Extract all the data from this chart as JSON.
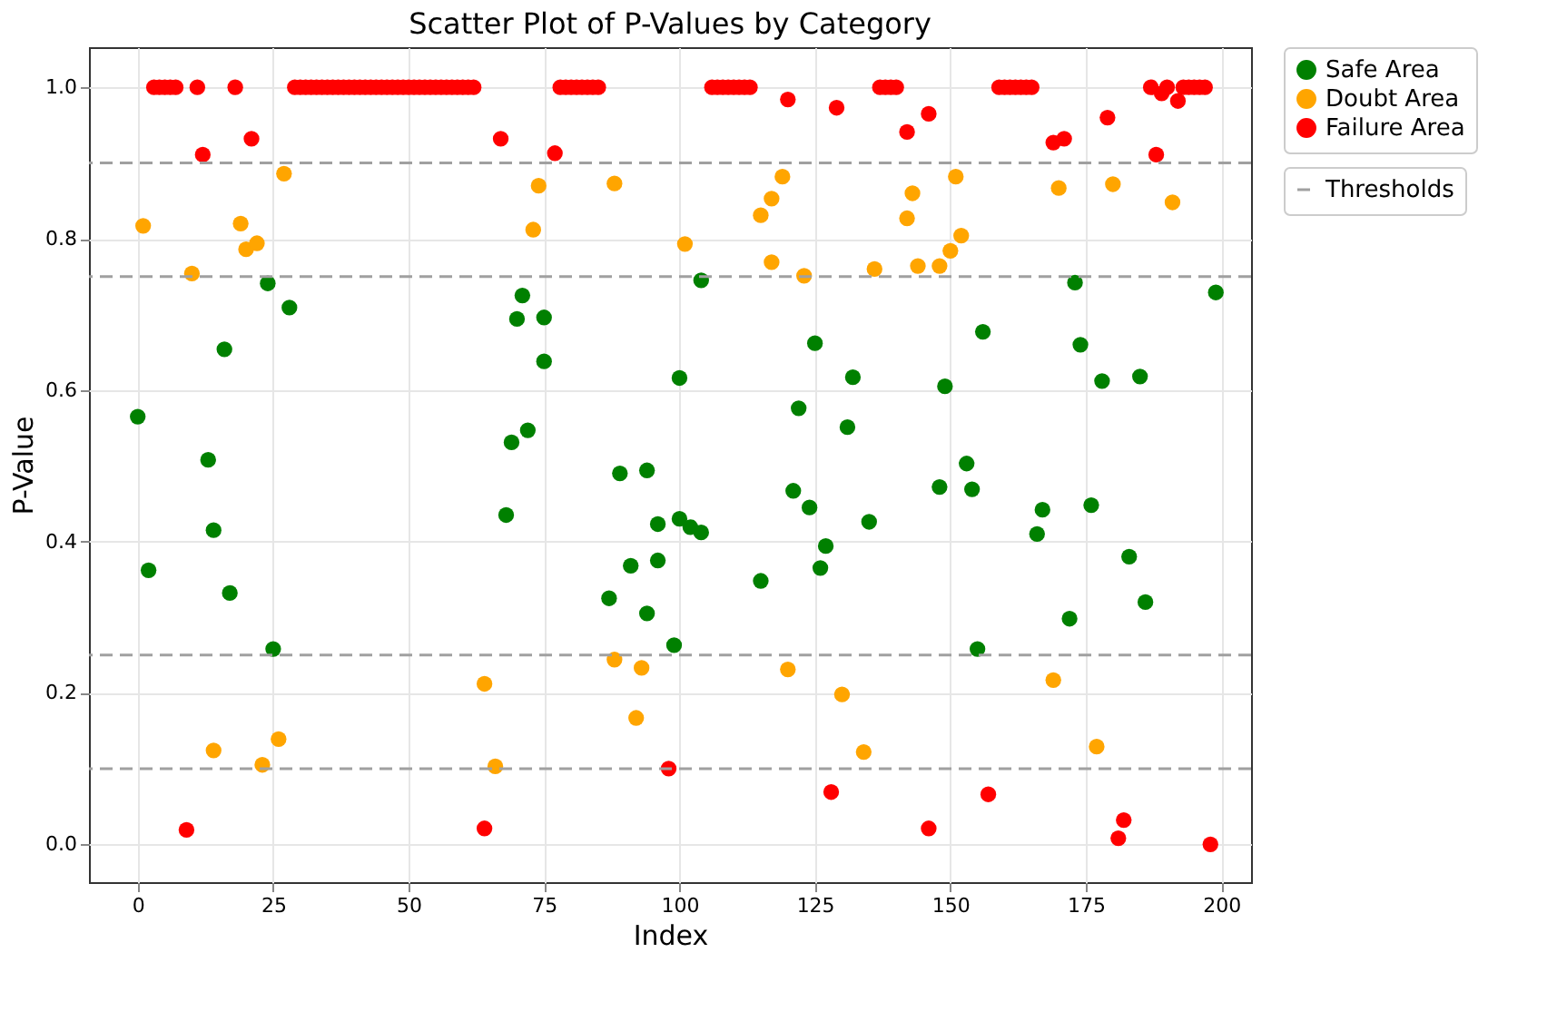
{
  "chart_data": {
    "type": "scatter",
    "title": "Scatter Plot of P-Values by Category",
    "xlabel": "Index",
    "ylabel": "P-Value",
    "xlim": [
      -9,
      205.5
    ],
    "ylim": [
      -0.05,
      1.053
    ],
    "xticks": [
      0,
      25,
      50,
      75,
      100,
      125,
      150,
      175,
      200
    ],
    "yticks": [
      {
        "value": 0,
        "label": "0.0"
      },
      {
        "value": 0.2,
        "label": "0.2"
      },
      {
        "value": 0.4,
        "label": "0.4"
      },
      {
        "value": 0.6,
        "label": "0.6"
      },
      {
        "value": 0.8,
        "label": "0.8"
      },
      {
        "value": 1,
        "label": "1.0"
      }
    ],
    "grid": true,
    "legend": "right",
    "marker": "circle",
    "series": [
      {
        "name": "Safe Area",
        "color": "#008000",
        "x": [
          0,
          2,
          13,
          14,
          16,
          17,
          24,
          25,
          28,
          68,
          69,
          70,
          71,
          72,
          75,
          75,
          87,
          89,
          91,
          94,
          94,
          96,
          96,
          99,
          100,
          100,
          102,
          104,
          104,
          115,
          121,
          122,
          124,
          125,
          127,
          126,
          131,
          132,
          135,
          148,
          149,
          153,
          154,
          155,
          156,
          166,
          167,
          172,
          173,
          174,
          176,
          178,
          183,
          185,
          186,
          199
        ],
        "values": [
          0.565,
          0.362,
          0.508,
          0.415,
          0.654,
          0.332,
          0.741,
          0.258,
          0.709,
          0.435,
          0.531,
          0.694,
          0.725,
          0.547,
          0.638,
          0.696,
          0.325,
          0.49,
          0.368,
          0.494,
          0.305,
          0.375,
          0.423,
          0.263,
          0.43,
          0.616,
          0.419,
          0.412,
          0.745,
          0.348,
          0.467,
          0.576,
          0.445,
          0.662,
          0.394,
          0.365,
          0.551,
          0.617,
          0.426,
          0.472,
          0.605,
          0.503,
          0.469,
          0.258,
          0.677,
          0.41,
          0.442,
          0.298,
          0.742,
          0.66,
          0.448,
          0.612,
          0.38,
          0.618,
          0.32,
          0.729
        ]
      },
      {
        "name": "Doubt Area",
        "color": "#ffa500",
        "x": [
          1,
          10,
          14,
          19,
          20,
          22,
          23,
          26,
          27,
          64,
          66,
          73,
          74,
          88,
          88,
          92,
          93,
          101,
          115,
          117,
          117,
          119,
          120,
          123,
          130,
          134,
          136,
          142,
          143,
          144,
          148,
          150,
          151,
          152,
          169,
          170,
          177,
          180,
          191
        ],
        "values": [
          0.817,
          0.754,
          0.124,
          0.82,
          0.786,
          0.794,
          0.105,
          0.139,
          0.886,
          0.212,
          0.103,
          0.812,
          0.87,
          0.244,
          0.873,
          0.167,
          0.233,
          0.793,
          0.831,
          0.853,
          0.769,
          0.882,
          0.231,
          0.751,
          0.198,
          0.122,
          0.76,
          0.827,
          0.86,
          0.764,
          0.764,
          0.784,
          0.882,
          0.804,
          0.217,
          0.867,
          0.129,
          0.872,
          0.848
        ]
      },
      {
        "name": "Failure Area",
        "color": "#ff0000",
        "x": [
          3,
          4,
          5,
          6,
          7,
          9,
          11,
          12,
          18,
          21,
          29,
          30,
          31,
          32,
          33,
          34,
          35,
          36,
          37,
          38,
          39,
          40,
          41,
          42,
          43,
          44,
          45,
          46,
          47,
          48,
          49,
          50,
          51,
          52,
          53,
          54,
          55,
          56,
          57,
          58,
          59,
          60,
          61,
          62,
          64,
          67,
          77,
          78,
          79,
          80,
          81,
          82,
          83,
          84,
          85,
          98,
          106,
          107,
          108,
          109,
          110,
          111,
          112,
          113,
          120,
          128,
          129,
          137,
          138,
          139,
          140,
          142,
          146,
          146,
          157,
          159,
          160,
          161,
          162,
          163,
          164,
          165,
          169,
          171,
          179,
          181,
          182,
          187,
          188,
          189,
          190,
          192,
          193,
          194,
          195,
          196,
          197,
          198
        ],
        "values": [
          1,
          1,
          1,
          1,
          1,
          0.019,
          1,
          0.911,
          1,
          0.932,
          1,
          1,
          1,
          1,
          1,
          1,
          1,
          1,
          1,
          1,
          1,
          1,
          1,
          1,
          1,
          1,
          1,
          1,
          1,
          1,
          1,
          1,
          1,
          1,
          1,
          1,
          1,
          1,
          1,
          1,
          1,
          1,
          1,
          1,
          0.021,
          0.932,
          0.913,
          1,
          1,
          1,
          1,
          1,
          1,
          1,
          1,
          0.1,
          1,
          1,
          1,
          1,
          1,
          1,
          1,
          1,
          0.984,
          0.069,
          0.973,
          1,
          1,
          1,
          1,
          0.941,
          0.021,
          0.965,
          0.066,
          1,
          1,
          1,
          1,
          1,
          1,
          1,
          0.927,
          0.932,
          0.96,
          0.008,
          0.032,
          1,
          0.911,
          0.992,
          1,
          0.982,
          1,
          1,
          1,
          1,
          1,
          0
        ]
      }
    ],
    "ref_lines": [
      {
        "axis": "y",
        "value": 0.1,
        "label": "Thresholds",
        "color": "#a0a0a0",
        "line_style": "dashed"
      },
      {
        "axis": "y",
        "value": 0.25,
        "color": "#a0a0a0",
        "line_style": "dashed"
      },
      {
        "axis": "y",
        "value": 0.75,
        "color": "#a0a0a0",
        "line_style": "dashed"
      },
      {
        "axis": "y",
        "value": 0.9,
        "color": "#a0a0a0",
        "line_style": "dashed"
      }
    ]
  }
}
